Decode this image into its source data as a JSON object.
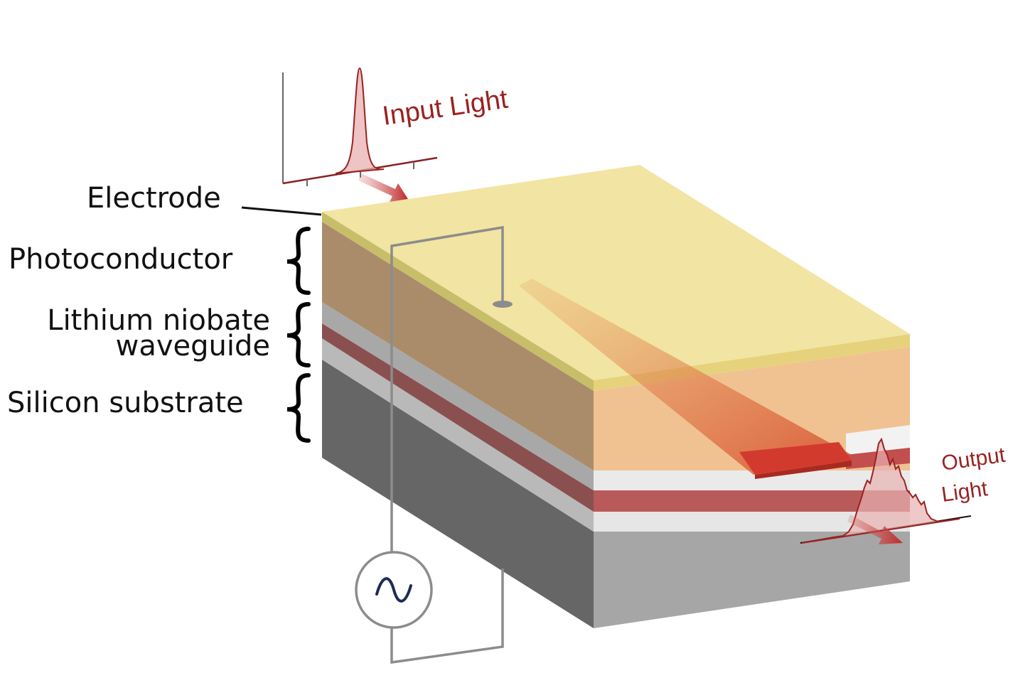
{
  "labels": {
    "electrode": "Electrode",
    "photoconductor": "Photoconductor",
    "lithium_niobate_line1": "Lithium niobate",
    "lithium_niobate_line2": "waveguide",
    "silicon_substrate": "Silicon substrate",
    "input_light": "Input Light",
    "output_light_line1": "Output",
    "output_light_line2": "Light"
  },
  "colors": {
    "electrode": "#f0e08c",
    "photoconductor": "#efc090",
    "lithium_niobate_layer": "#c05050",
    "cladding": "#e8e8e8",
    "silicon": "#a6a6a6",
    "waveguide": "#d03a2e",
    "pulse": "#b03030",
    "circuit_wire": "#8c8c8c"
  },
  "icons": {
    "ac_source": "sine-wave-icon"
  }
}
